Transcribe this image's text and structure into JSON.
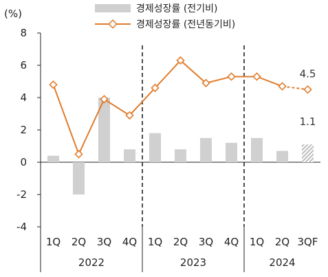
{
  "chart_data": {
    "type": "bar",
    "ylabel": "(%)",
    "ylim": [
      -4,
      8
    ],
    "yticks": [
      8,
      6,
      4,
      2,
      0,
      -2,
      -4
    ],
    "grid": false,
    "legend_position": "top",
    "categories": [
      "1Q",
      "2Q",
      "3Q",
      "4Q",
      "1Q",
      "2Q",
      "3Q",
      "4Q",
      "1Q",
      "2Q",
      "3QF"
    ],
    "year_groups": [
      {
        "label": "2022",
        "span": 4
      },
      {
        "label": "2023",
        "span": 4
      },
      {
        "label": "2024",
        "span": 3
      }
    ],
    "series": [
      {
        "name": "경제성장률 (전기비)",
        "kind": "bar",
        "color": "#d0d0d0",
        "values": [
          0.4,
          -2.0,
          4.0,
          0.8,
          1.8,
          0.8,
          1.5,
          1.2,
          1.5,
          0.7,
          1.1
        ],
        "forecast_index": 10
      },
      {
        "name": "경제성장률 (전년동기비)",
        "kind": "line",
        "color": "#e07b2a",
        "values": [
          4.8,
          0.5,
          3.9,
          2.9,
          4.6,
          6.3,
          4.9,
          5.3,
          5.3,
          4.7,
          4.5
        ],
        "forecast_index": 10
      }
    ],
    "data_labels": [
      {
        "series": 1,
        "index": 10,
        "text": "4.5"
      },
      {
        "series": 0,
        "index": 10,
        "text": "1.1"
      }
    ]
  }
}
